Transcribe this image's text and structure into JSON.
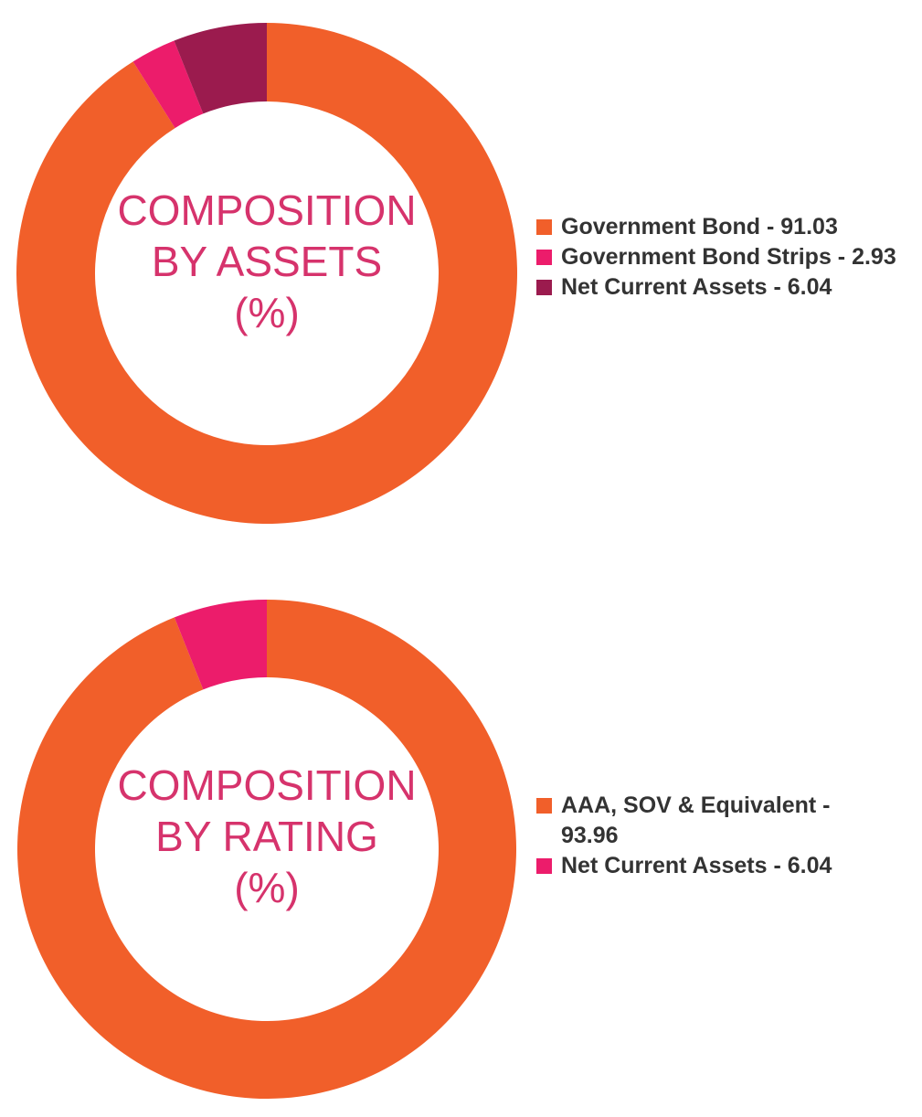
{
  "chart_data": [
    {
      "type": "pie",
      "title_lines": [
        "COMPOSITION",
        "BY ASSETS",
        "(%)"
      ],
      "slices": [
        {
          "label": "Government Bond - 91.03",
          "value": 91.03,
          "color": "#f15f2a"
        },
        {
          "label": "Government Bond Strips - 2.93",
          "value": 2.93,
          "color": "#ec1c6b"
        },
        {
          "label": "Net Current Assets - 6.04",
          "value": 6.04,
          "color": "#9b1b4e"
        }
      ],
      "legend": "right"
    },
    {
      "type": "pie",
      "title_lines": [
        "COMPOSITION",
        "BY RATING",
        "(%)"
      ],
      "slices": [
        {
          "label": "AAA, SOV & Equivalent - 93.96",
          "value": 93.96,
          "color": "#f15f2a"
        },
        {
          "label": "Net Current Assets - 6.04",
          "value": 6.04,
          "color": "#ec1c6b"
        }
      ],
      "legend": "right"
    }
  ]
}
